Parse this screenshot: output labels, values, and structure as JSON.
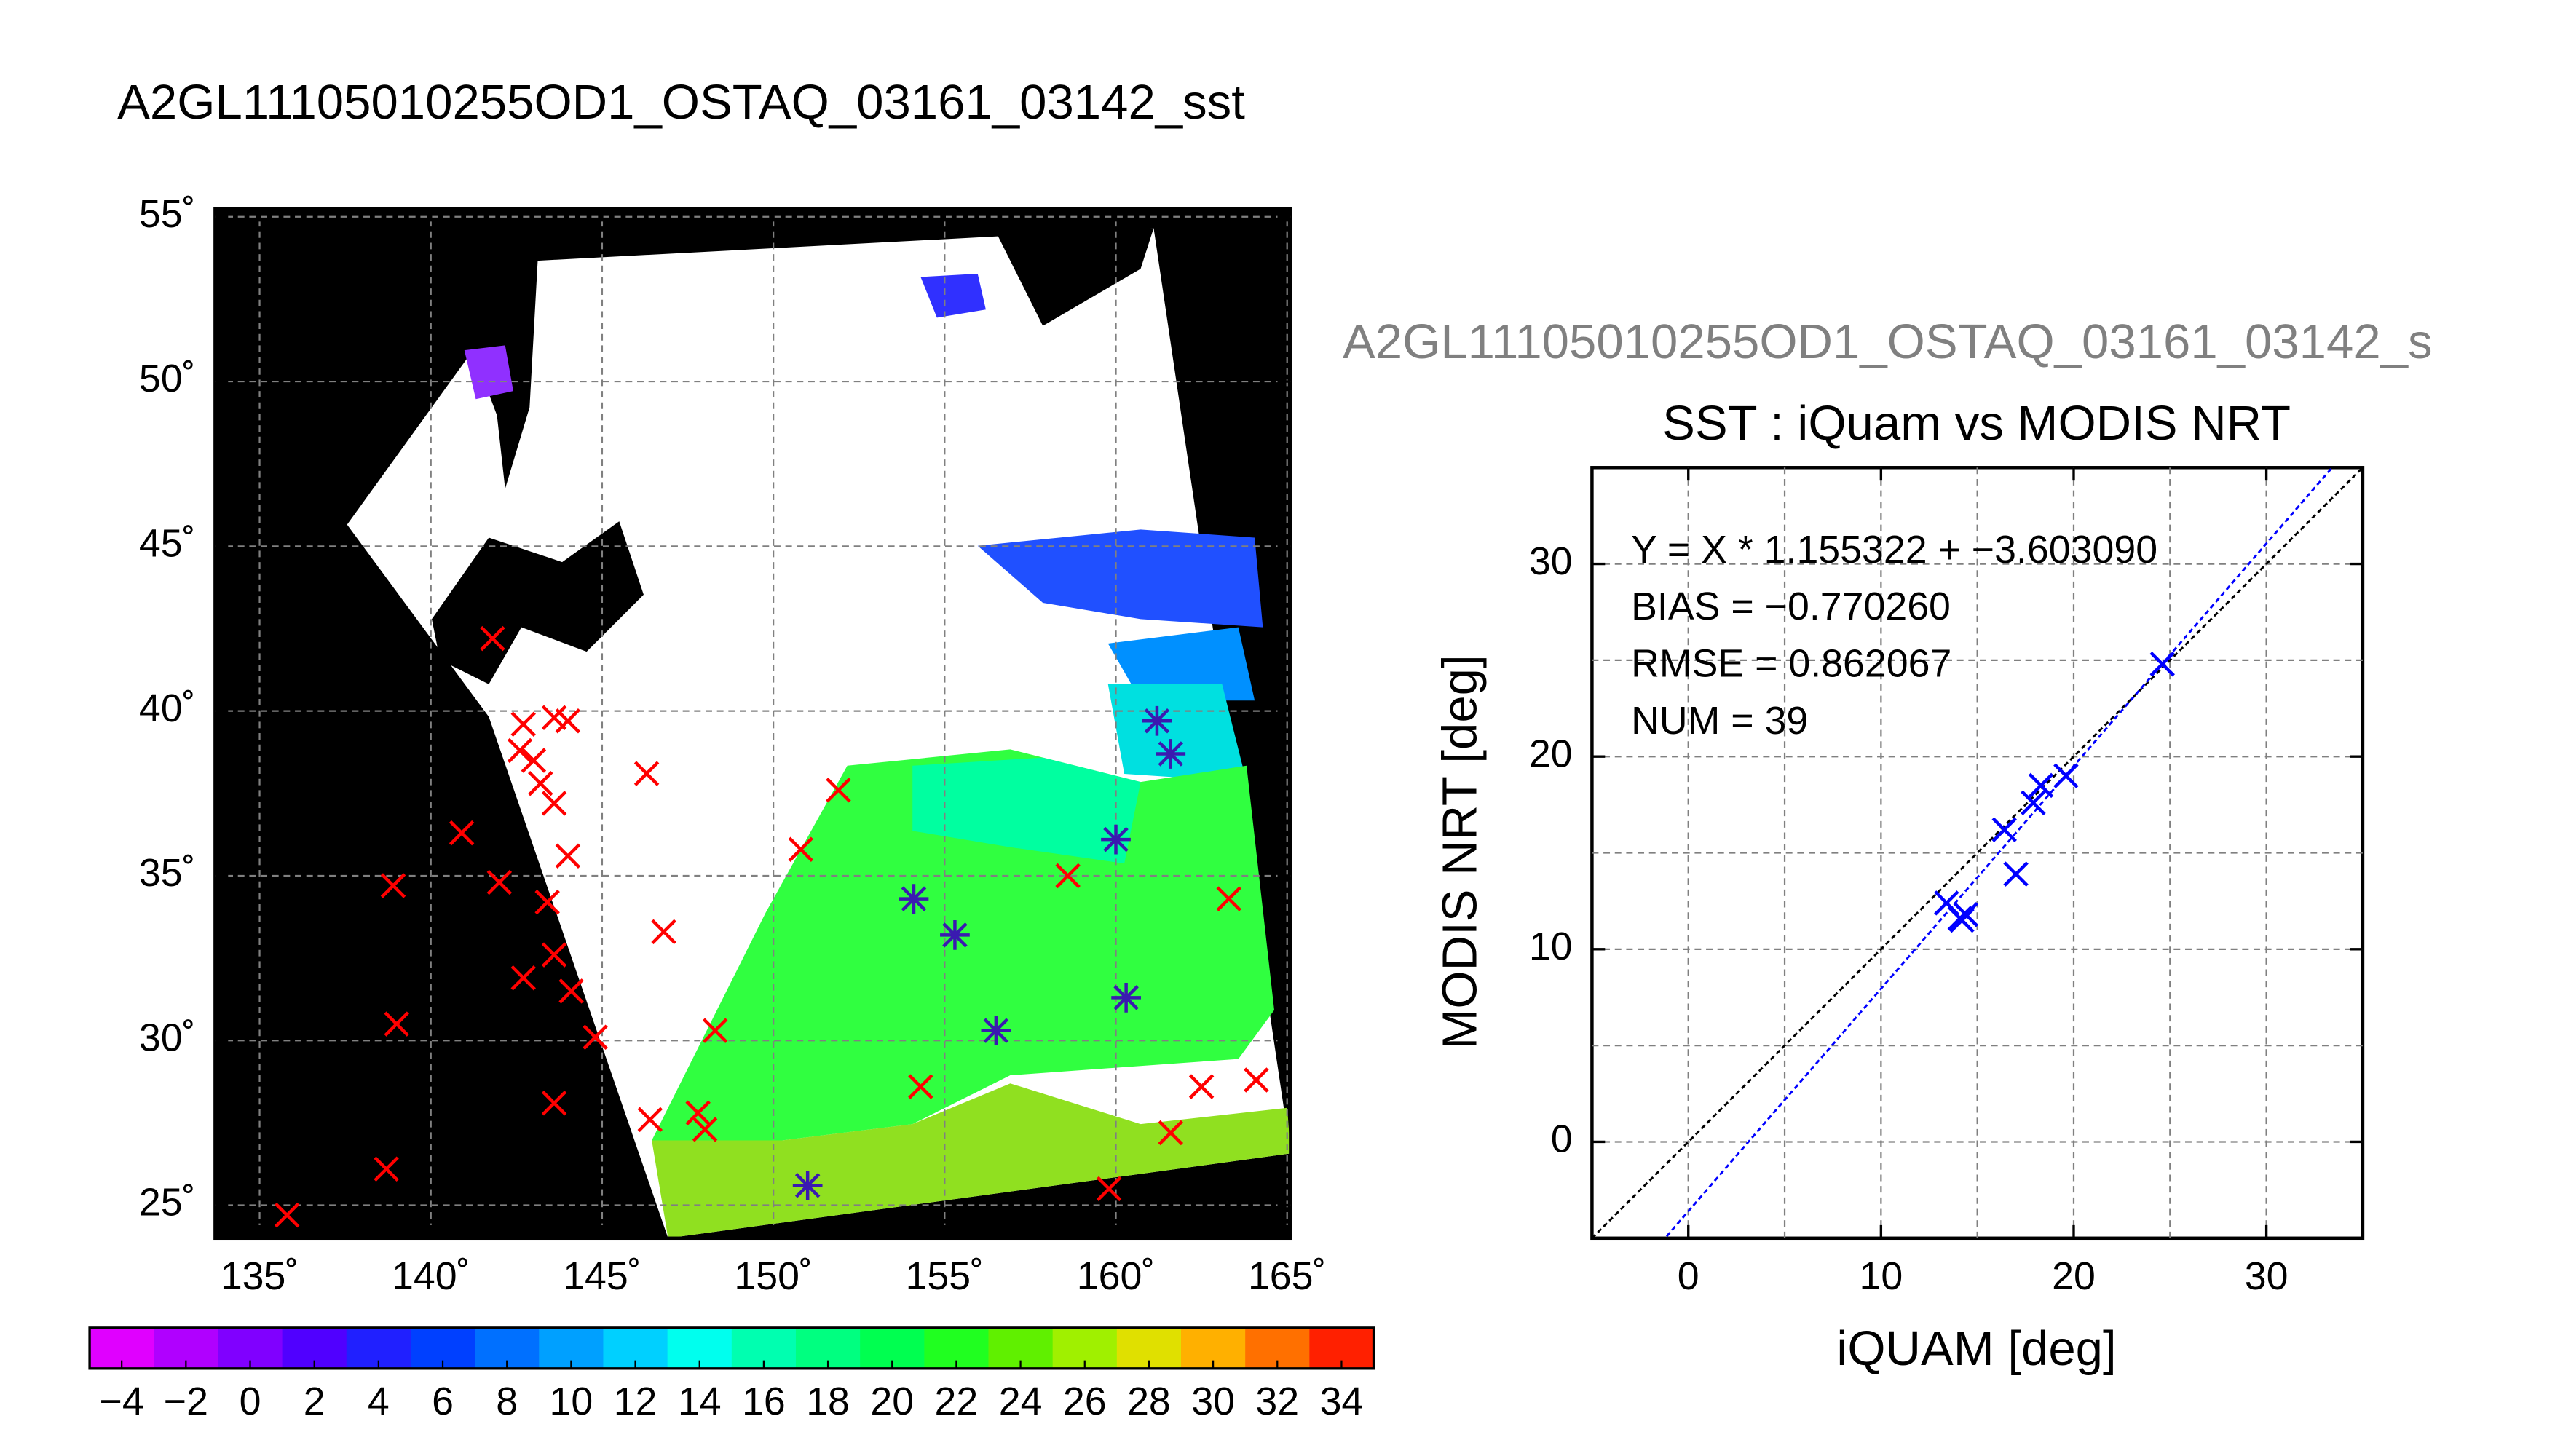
{
  "chart_data": [
    {
      "type": "scatter",
      "title": "A2GL11105010255OD1_OSTAQ_03161_03142_sst",
      "xlim": [
        133.7,
        165.1
      ],
      "ylim": [
        24,
        55.25
      ],
      "xticks": [
        {
          "value": 135,
          "label": "135˚"
        },
        {
          "value": 140,
          "label": "140˚"
        },
        {
          "value": 145,
          "label": "145˚"
        },
        {
          "value": 150,
          "label": "150˚"
        },
        {
          "value": 155,
          "label": "155˚"
        },
        {
          "value": 160,
          "label": "160˚"
        },
        {
          "value": 165,
          "label": "165˚"
        }
      ],
      "yticks": [
        {
          "value": 25,
          "label": "25˚"
        },
        {
          "value": 30,
          "label": "30˚"
        },
        {
          "value": 35,
          "label": "35˚"
        },
        {
          "value": 40,
          "label": "40˚"
        },
        {
          "value": 45,
          "label": "45˚"
        },
        {
          "value": 50,
          "label": "50˚"
        },
        {
          "value": 55,
          "label": "55˚"
        }
      ],
      "grid": true,
      "series": [
        {
          "color": "#ff0000",
          "marker": "x",
          "x": [
            141.8,
            142.7,
            142.6,
            143.6,
            144.0,
            143.0,
            143.2,
            143.6,
            146.3,
            151.9,
            150.8,
            140.9,
            142.0,
            144.0,
            138.9,
            143.4,
            146.8,
            143.6,
            142.7,
            144.1,
            139.0,
            144.8,
            148.3,
            143.6,
            146.4,
            147.8,
            148.0,
            138.7,
            135.8,
            154.3,
            158.6,
            159.8,
            161.6,
            162.5,
            164.1,
            163.3
          ],
          "values": [
            42.2,
            39.6,
            38.8,
            39.8,
            39.7,
            38.5,
            37.8,
            37.2,
            38.1,
            37.6,
            35.8,
            36.3,
            34.8,
            35.6,
            34.7,
            34.2,
            33.3,
            32.6,
            31.9,
            31.5,
            30.5,
            30.1,
            30.3,
            28.1,
            27.6,
            27.8,
            27.3,
            26.1,
            24.7,
            28.6,
            35.0,
            25.5,
            27.2,
            28.6,
            28.8,
            34.3
          ]
        },
        {
          "color": "#3a1ab0",
          "marker": "asterisk",
          "x": [
            151.0,
            154.1,
            155.3,
            156.5,
            160.0,
            160.3,
            161.2,
            161.6
          ],
          "values": [
            25.6,
            34.3,
            33.2,
            30.3,
            36.1,
            31.3,
            39.7,
            38.7
          ]
        }
      ]
    },
    {
      "type": "colorbar",
      "clim": [
        -5,
        35
      ],
      "colors": [
        "#e000ff",
        "#b000ff",
        "#8000ff",
        "#5000ff",
        "#2020ff",
        "#0040ff",
        "#0070ff",
        "#00a0ff",
        "#00d0ff",
        "#00ffee",
        "#00ffb0",
        "#00ff80",
        "#00ff50",
        "#20ff20",
        "#60f000",
        "#a0f000",
        "#e0e000",
        "#ffb000",
        "#ff7000",
        "#ff2000"
      ],
      "ticks": [
        {
          "value": -4,
          "label": "−4"
        },
        {
          "value": -2,
          "label": "−2"
        },
        0,
        2,
        4,
        6,
        8,
        10,
        12,
        14,
        16,
        18,
        20,
        22,
        24,
        26,
        28,
        30,
        32,
        34
      ]
    },
    {
      "type": "scatter",
      "subtitle": "A2GL11105010255OD1_OSTAQ_03161_03142_s",
      "title": "SST : iQuam vs MODIS NRT",
      "x_label": "iQUAM [deg]",
      "y_label": "MODIS NRT [deg]",
      "xlim": [
        -5,
        35
      ],
      "ylim": [
        -5,
        35
      ],
      "xticks": [
        0,
        10,
        20,
        30
      ],
      "yticks": [
        0,
        10,
        20,
        30
      ],
      "xgrid": [
        0,
        5,
        10,
        15,
        20,
        25,
        30
      ],
      "ygrid": [
        0,
        5,
        10,
        15,
        20,
        25,
        30
      ],
      "series": [
        {
          "color": "#0000ff",
          "marker": "x",
          "x": [
            24.6,
            19.6,
            18.3,
            17.9,
            16.4,
            17.0,
            13.4,
            14.1,
            14.4,
            14.2
          ],
          "values": [
            24.8,
            19.0,
            18.5,
            17.6,
            16.2,
            13.9,
            12.4,
            11.6,
            11.8,
            11.5
          ]
        }
      ],
      "lines": [
        {
          "slope": 1,
          "intercept": 0,
          "color": "#000000"
        },
        {
          "slope": 1.155322,
          "intercept": -3.60309,
          "color": "#0000ff"
        }
      ],
      "annotations": [
        "Y = X * 1.155322 + −3.603090",
        "BIAS = −0.770260",
        "RMSE = 0.862067",
        "NUM = 39"
      ]
    }
  ]
}
